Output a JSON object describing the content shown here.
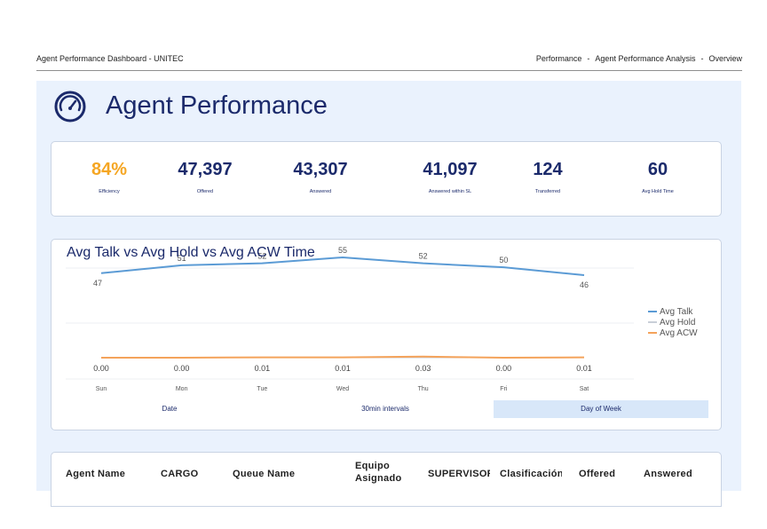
{
  "topbar": {
    "title": "Agent Performance Dashboard - UNITEC",
    "breadcrumb": [
      "Performance",
      "Agent Performance Analysis",
      "Overview"
    ],
    "separator": "-"
  },
  "header": {
    "title": "Agent Performance",
    "icon": "gauge-icon"
  },
  "kpis": [
    {
      "value": "84%",
      "label": "Efficiency",
      "color": "#f5a623"
    },
    {
      "value": "47,397",
      "label": "Offered"
    },
    {
      "value": "43,307",
      "label": "Answered"
    },
    {
      "value": "41,097",
      "label": "Answered within SL"
    },
    {
      "value": "124",
      "label": "Transferred"
    },
    {
      "value": "60",
      "label": "Avg Hold Time"
    }
  ],
  "chart_data": {
    "type": "line",
    "title": "Avg Talk vs Avg Hold vs Avg ACW Time",
    "categories": [
      "Sun",
      "Mon",
      "Tue",
      "Wed",
      "Thu",
      "Fri",
      "Sat"
    ],
    "series": [
      {
        "name": "Avg Talk",
        "color": "#5b9bd5",
        "values": [
          47,
          51,
          52,
          55,
          52,
          50,
          46
        ]
      },
      {
        "name": "Avg Hold",
        "color": "#c9cfd8",
        "values": [
          0,
          0,
          0,
          0,
          0,
          0,
          0
        ]
      },
      {
        "name": "Avg ACW",
        "color": "#f4a35b",
        "values": [
          0.0,
          0.0,
          0.01,
          0.01,
          0.03,
          0.0,
          0.01
        ],
        "labels": [
          "0.00",
          "0.00",
          "0.01",
          "0.01",
          "0.03",
          "0.00",
          "0.01"
        ]
      }
    ],
    "legend_position": "right",
    "grid": true
  },
  "toggles": [
    {
      "label": "Date",
      "active": false
    },
    {
      "label": "30min intervals",
      "active": false
    },
    {
      "label": "Day of Week",
      "active": true
    }
  ],
  "table": {
    "columns": [
      "Agent Name",
      "CARGO",
      "Queue Name",
      "Equipo Asignado",
      "SUPERVISOR",
      "Clasificación",
      "Offered",
      "Answered"
    ]
  }
}
